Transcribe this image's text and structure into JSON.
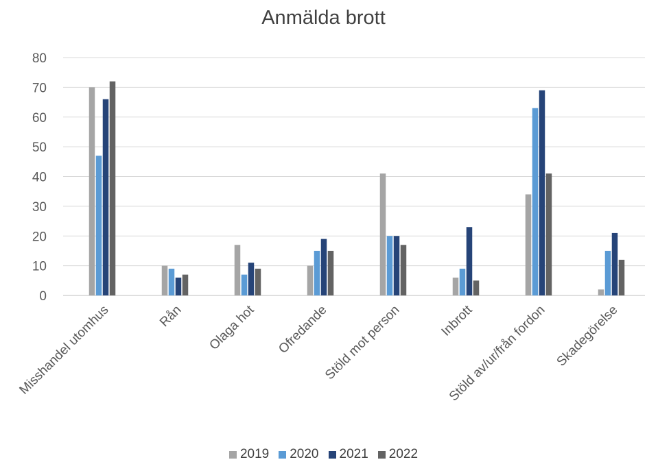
{
  "chart_data": {
    "type": "bar",
    "title": "Anmälda brott",
    "categories": [
      "Misshandel utomhus",
      "Rån",
      "Olaga hot",
      "Ofredande",
      "Stöld mot person",
      "Inbrott",
      "Stöld av/ur/från fordon",
      "Skadegörelse"
    ],
    "series": [
      {
        "name": "2019",
        "color": "#a5a5a5",
        "values": [
          70,
          10,
          17,
          10,
          41,
          6,
          34,
          2
        ]
      },
      {
        "name": "2020",
        "color": "#5b9bd5",
        "values": [
          47,
          9,
          7,
          15,
          20,
          9,
          63,
          15
        ]
      },
      {
        "name": "2021",
        "color": "#264478",
        "values": [
          66,
          6,
          11,
          19,
          20,
          23,
          69,
          21
        ]
      },
      {
        "name": "2022",
        "color": "#636363",
        "values": [
          72,
          7,
          9,
          15,
          17,
          5,
          41,
          12
        ]
      }
    ],
    "yticks": [
      "0",
      "10",
      "20",
      "30",
      "40",
      "50",
      "60",
      "70",
      "80"
    ],
    "ylim": [
      0,
      80
    ],
    "grid": true,
    "legend_position": "bottom",
    "xlabel": "",
    "ylabel": ""
  }
}
